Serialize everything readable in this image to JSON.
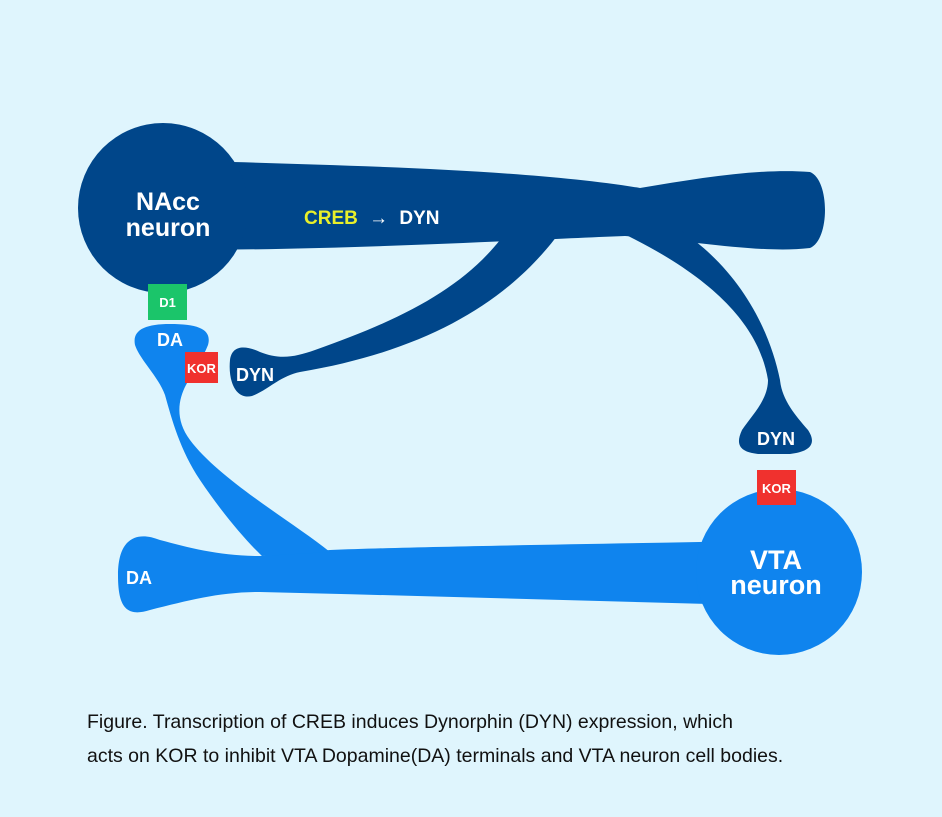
{
  "nacc": {
    "line1": "NAcc",
    "line2": "neuron"
  },
  "vta": {
    "line1": "VTA",
    "line2": "neuron"
  },
  "creb_label": {
    "creb": "CREB",
    "arrow": "→",
    "dyn": "DYN"
  },
  "d1_label": "D1",
  "kor_labels": [
    "KOR",
    "KOR"
  ],
  "da_labels": [
    "DA",
    "DA"
  ],
  "dyn_labels": [
    "DYN",
    "DYN"
  ],
  "caption": {
    "line1": "Figure. Transcription of CREB induces Dynorphin (DYN) expression, which",
    "line2": "acts on KOR to inhibit VTA Dopamine(DA) terminals and VTA neuron cell bodies."
  },
  "colors": {
    "background": "#dff5fd",
    "nacc_neuron": "#00468a",
    "vta_neuron": "#0f84ee",
    "receptor_d1": "#1bc56a",
    "receptor_kor": "#f0312e",
    "creb_text": "#e8ef2a",
    "label_text": "#ffffff"
  }
}
